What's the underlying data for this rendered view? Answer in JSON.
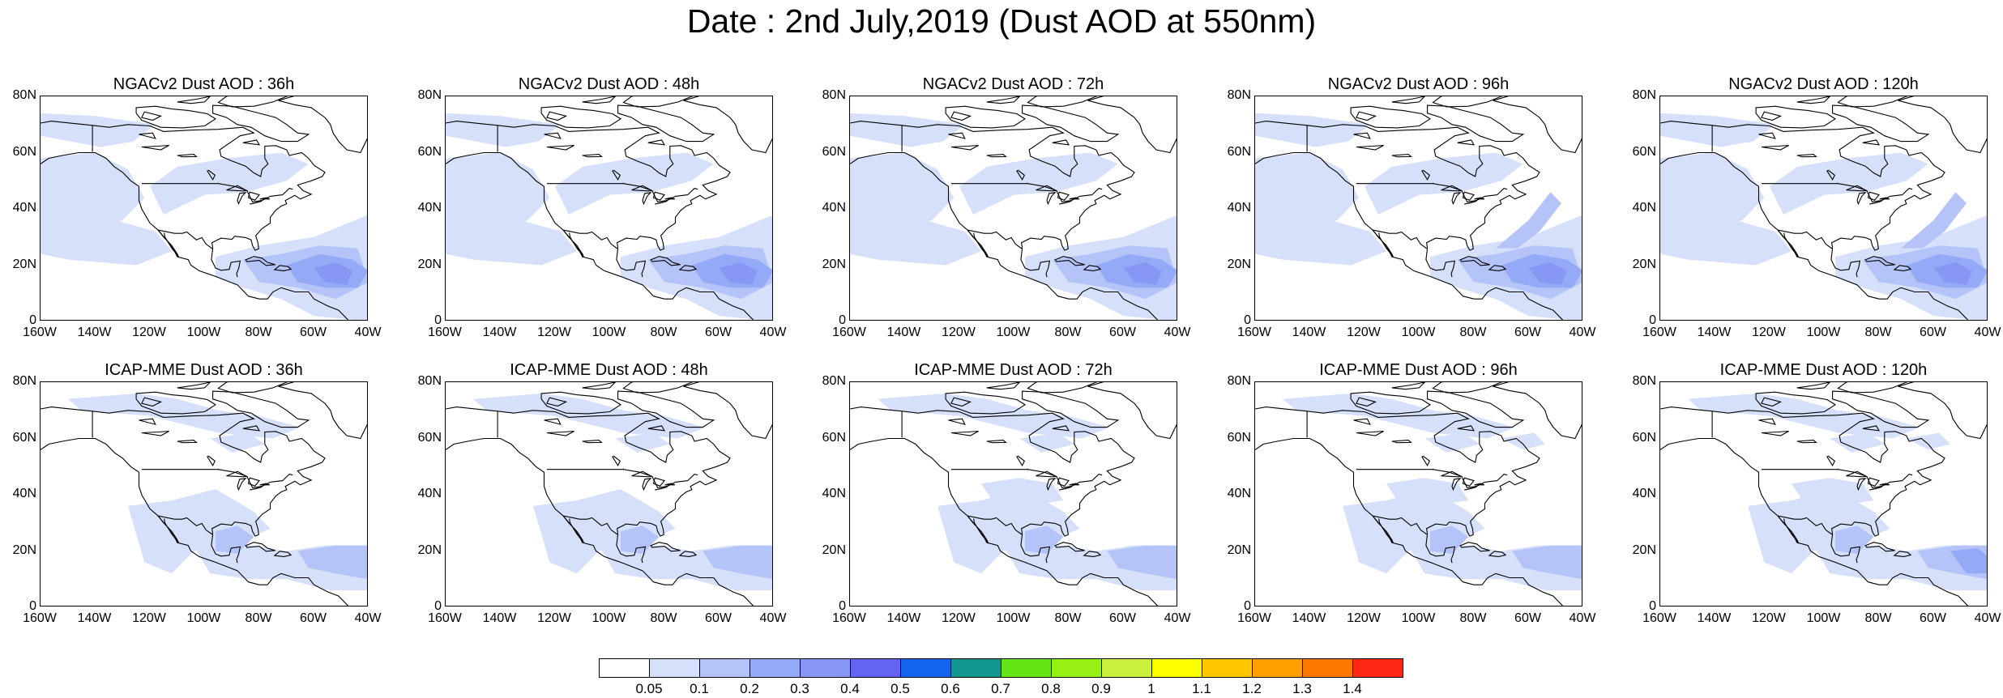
{
  "title": "Date : 2nd July,2019 (Dust AOD at 550nm)",
  "lat_ticks": [
    "80N",
    "60N",
    "40N",
    "20N",
    "0"
  ],
  "lon_ticks": [
    "160W",
    "140W",
    "120W",
    "100W",
    "80W",
    "60W",
    "40W"
  ],
  "domain": {
    "lon_range": [
      -160,
      -40
    ],
    "lat_range": [
      0,
      80
    ]
  },
  "panels": [
    {
      "title": "NGACv2 Dust AOD : 36h",
      "model": "NGACv2",
      "lead": "36h"
    },
    {
      "title": "NGACv2 Dust AOD : 48h",
      "model": "NGACv2",
      "lead": "48h"
    },
    {
      "title": "NGACv2 Dust AOD : 72h",
      "model": "NGACv2",
      "lead": "72h"
    },
    {
      "title": "NGACv2 Dust AOD : 96h",
      "model": "NGACv2",
      "lead": "96h"
    },
    {
      "title": "NGACv2 Dust AOD : 120h",
      "model": "NGACv2",
      "lead": "120h"
    },
    {
      "title": "ICAP-MME Dust AOD : 36h",
      "model": "ICAP-MME",
      "lead": "36h"
    },
    {
      "title": "ICAP-MME Dust AOD : 48h",
      "model": "ICAP-MME",
      "lead": "48h"
    },
    {
      "title": "ICAP-MME Dust AOD : 72h",
      "model": "ICAP-MME",
      "lead": "72h"
    },
    {
      "title": "ICAP-MME Dust AOD : 96h",
      "model": "ICAP-MME",
      "lead": "96h"
    },
    {
      "title": "ICAP-MME Dust AOD : 120h",
      "model": "ICAP-MME",
      "lead": "120h"
    }
  ],
  "colorbar": {
    "colors": [
      "#ffffff",
      "#d6e0fa",
      "#b4c4f8",
      "#94aaf6",
      "#8896f4",
      "#6464f0",
      "#1464f0",
      "#10968c",
      "#64e614",
      "#96f014",
      "#c8f03c",
      "#ffff00",
      "#ffc800",
      "#ffa000",
      "#ff7800",
      "#ff2814"
    ],
    "labels": [
      "0.05",
      "0.1",
      "0.2",
      "0.3",
      "0.4",
      "0.5",
      "0.6",
      "0.7",
      "0.8",
      "0.9",
      "1",
      "1.1",
      "1.2",
      "1.3",
      "1.4"
    ]
  }
}
